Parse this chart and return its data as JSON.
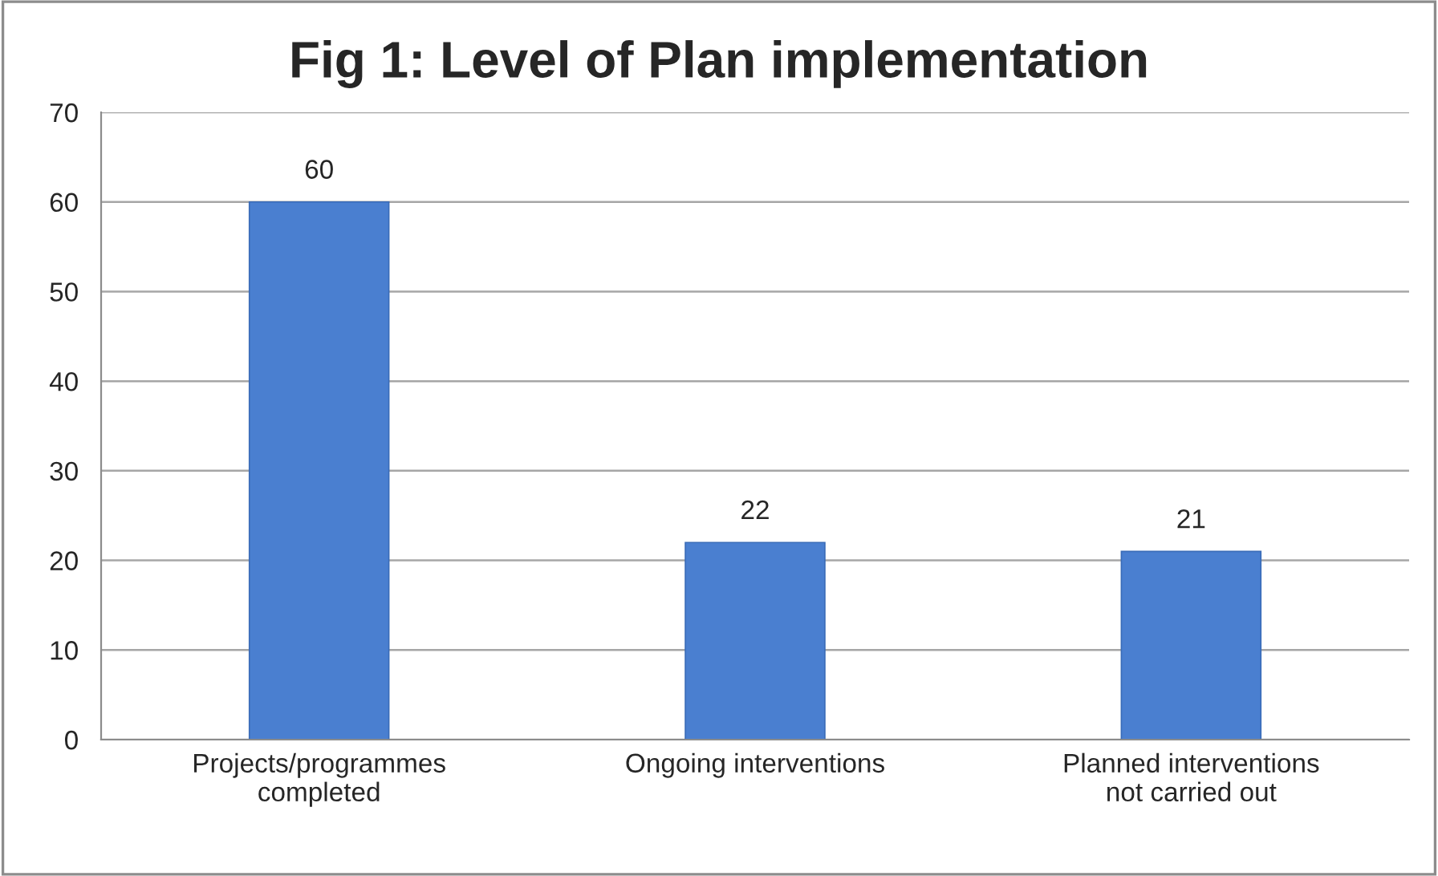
{
  "chart_data": {
    "type": "bar",
    "title": "Fig 1: Level of Plan implementation",
    "categories": [
      "Projects/programmes completed",
      "Ongoing interventions",
      "Planned interventions not carried out"
    ],
    "values": [
      60,
      22,
      21
    ],
    "color": "#4a7fd0",
    "ylim": [
      0,
      70
    ],
    "yticks": [
      0,
      10,
      20,
      30,
      40,
      50,
      60,
      70
    ],
    "grid": "y",
    "data_labels": true,
    "legend": false
  }
}
